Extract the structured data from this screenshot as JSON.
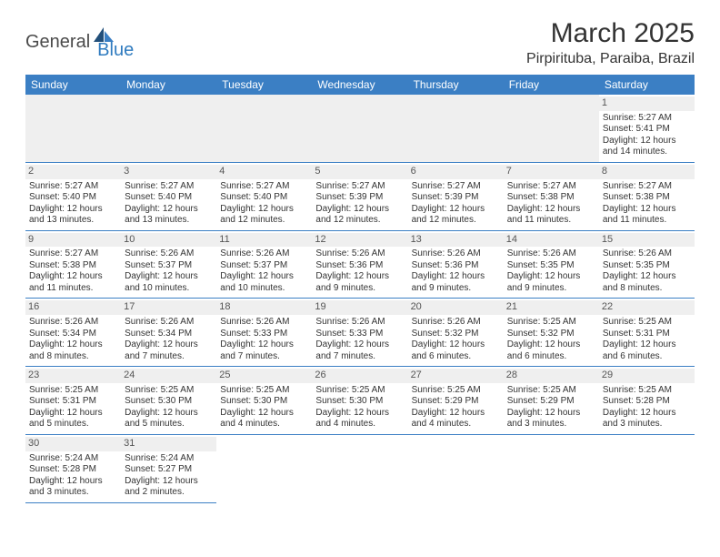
{
  "logo": {
    "part1": "General",
    "part2": "Blue"
  },
  "title": "March 2025",
  "location": "Pirpirituba, Paraiba, Brazil",
  "colors": {
    "header_bg": "#3b7fc4",
    "header_fg": "#ffffff",
    "daynum_bg": "#efefef",
    "border": "#3b7fc4",
    "logo_accent": "#2f7bbf"
  },
  "weekdays": [
    "Sunday",
    "Monday",
    "Tuesday",
    "Wednesday",
    "Thursday",
    "Friday",
    "Saturday"
  ],
  "days": {
    "1": {
      "sunrise": "Sunrise: 5:27 AM",
      "sunset": "Sunset: 5:41 PM",
      "daylight": "Daylight: 12 hours and 14 minutes."
    },
    "2": {
      "sunrise": "Sunrise: 5:27 AM",
      "sunset": "Sunset: 5:40 PM",
      "daylight": "Daylight: 12 hours and 13 minutes."
    },
    "3": {
      "sunrise": "Sunrise: 5:27 AM",
      "sunset": "Sunset: 5:40 PM",
      "daylight": "Daylight: 12 hours and 13 minutes."
    },
    "4": {
      "sunrise": "Sunrise: 5:27 AM",
      "sunset": "Sunset: 5:40 PM",
      "daylight": "Daylight: 12 hours and 12 minutes."
    },
    "5": {
      "sunrise": "Sunrise: 5:27 AM",
      "sunset": "Sunset: 5:39 PM",
      "daylight": "Daylight: 12 hours and 12 minutes."
    },
    "6": {
      "sunrise": "Sunrise: 5:27 AM",
      "sunset": "Sunset: 5:39 PM",
      "daylight": "Daylight: 12 hours and 12 minutes."
    },
    "7": {
      "sunrise": "Sunrise: 5:27 AM",
      "sunset": "Sunset: 5:38 PM",
      "daylight": "Daylight: 12 hours and 11 minutes."
    },
    "8": {
      "sunrise": "Sunrise: 5:27 AM",
      "sunset": "Sunset: 5:38 PM",
      "daylight": "Daylight: 12 hours and 11 minutes."
    },
    "9": {
      "sunrise": "Sunrise: 5:27 AM",
      "sunset": "Sunset: 5:38 PM",
      "daylight": "Daylight: 12 hours and 11 minutes."
    },
    "10": {
      "sunrise": "Sunrise: 5:26 AM",
      "sunset": "Sunset: 5:37 PM",
      "daylight": "Daylight: 12 hours and 10 minutes."
    },
    "11": {
      "sunrise": "Sunrise: 5:26 AM",
      "sunset": "Sunset: 5:37 PM",
      "daylight": "Daylight: 12 hours and 10 minutes."
    },
    "12": {
      "sunrise": "Sunrise: 5:26 AM",
      "sunset": "Sunset: 5:36 PM",
      "daylight": "Daylight: 12 hours and 9 minutes."
    },
    "13": {
      "sunrise": "Sunrise: 5:26 AM",
      "sunset": "Sunset: 5:36 PM",
      "daylight": "Daylight: 12 hours and 9 minutes."
    },
    "14": {
      "sunrise": "Sunrise: 5:26 AM",
      "sunset": "Sunset: 5:35 PM",
      "daylight": "Daylight: 12 hours and 9 minutes."
    },
    "15": {
      "sunrise": "Sunrise: 5:26 AM",
      "sunset": "Sunset: 5:35 PM",
      "daylight": "Daylight: 12 hours and 8 minutes."
    },
    "16": {
      "sunrise": "Sunrise: 5:26 AM",
      "sunset": "Sunset: 5:34 PM",
      "daylight": "Daylight: 12 hours and 8 minutes."
    },
    "17": {
      "sunrise": "Sunrise: 5:26 AM",
      "sunset": "Sunset: 5:34 PM",
      "daylight": "Daylight: 12 hours and 7 minutes."
    },
    "18": {
      "sunrise": "Sunrise: 5:26 AM",
      "sunset": "Sunset: 5:33 PM",
      "daylight": "Daylight: 12 hours and 7 minutes."
    },
    "19": {
      "sunrise": "Sunrise: 5:26 AM",
      "sunset": "Sunset: 5:33 PM",
      "daylight": "Daylight: 12 hours and 7 minutes."
    },
    "20": {
      "sunrise": "Sunrise: 5:26 AM",
      "sunset": "Sunset: 5:32 PM",
      "daylight": "Daylight: 12 hours and 6 minutes."
    },
    "21": {
      "sunrise": "Sunrise: 5:25 AM",
      "sunset": "Sunset: 5:32 PM",
      "daylight": "Daylight: 12 hours and 6 minutes."
    },
    "22": {
      "sunrise": "Sunrise: 5:25 AM",
      "sunset": "Sunset: 5:31 PM",
      "daylight": "Daylight: 12 hours and 6 minutes."
    },
    "23": {
      "sunrise": "Sunrise: 5:25 AM",
      "sunset": "Sunset: 5:31 PM",
      "daylight": "Daylight: 12 hours and 5 minutes."
    },
    "24": {
      "sunrise": "Sunrise: 5:25 AM",
      "sunset": "Sunset: 5:30 PM",
      "daylight": "Daylight: 12 hours and 5 minutes."
    },
    "25": {
      "sunrise": "Sunrise: 5:25 AM",
      "sunset": "Sunset: 5:30 PM",
      "daylight": "Daylight: 12 hours and 4 minutes."
    },
    "26": {
      "sunrise": "Sunrise: 5:25 AM",
      "sunset": "Sunset: 5:30 PM",
      "daylight": "Daylight: 12 hours and 4 minutes."
    },
    "27": {
      "sunrise": "Sunrise: 5:25 AM",
      "sunset": "Sunset: 5:29 PM",
      "daylight": "Daylight: 12 hours and 4 minutes."
    },
    "28": {
      "sunrise": "Sunrise: 5:25 AM",
      "sunset": "Sunset: 5:29 PM",
      "daylight": "Daylight: 12 hours and 3 minutes."
    },
    "29": {
      "sunrise": "Sunrise: 5:25 AM",
      "sunset": "Sunset: 5:28 PM",
      "daylight": "Daylight: 12 hours and 3 minutes."
    },
    "30": {
      "sunrise": "Sunrise: 5:24 AM",
      "sunset": "Sunset: 5:28 PM",
      "daylight": "Daylight: 12 hours and 3 minutes."
    },
    "31": {
      "sunrise": "Sunrise: 5:24 AM",
      "sunset": "Sunset: 5:27 PM",
      "daylight": "Daylight: 12 hours and 2 minutes."
    }
  },
  "layout": {
    "first_weekday_index": 6,
    "num_days": 31
  }
}
